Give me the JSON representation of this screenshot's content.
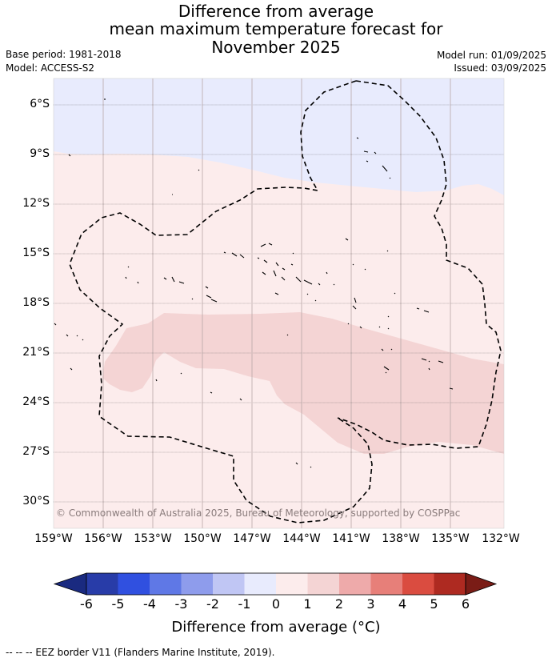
{
  "title": {
    "line1": "Difference from average",
    "line2": "mean maximum temperature forecast for",
    "line3": "November 2025"
  },
  "meta": {
    "base_period": "Base period: 1981-2018",
    "model": "Model: ACCESS-S2",
    "model_run": "Model run: 01/09/2025",
    "issued": "Issued: 03/09/2025"
  },
  "map": {
    "lat_labels": [
      "6°S",
      "9°S",
      "12°S",
      "15°S",
      "18°S",
      "21°S",
      "24°S",
      "27°S",
      "30°S"
    ],
    "lon_labels": [
      "159°W",
      "156°W",
      "153°W",
      "150°W",
      "147°W",
      "144°W",
      "141°W",
      "138°W",
      "135°W",
      "132°W"
    ],
    "copyright": "© Commonwealth of Australia 2025, Bureau of Meteorology, supported by COSPPac",
    "region_values": {
      "north_band": -0.5,
      "background": 0.5,
      "central_band": 1.5
    }
  },
  "colorbar": {
    "ticks": [
      "-6",
      "-5",
      "-4",
      "-3",
      "-2",
      "-1",
      "0",
      "1",
      "2",
      "3",
      "4",
      "5",
      "6"
    ],
    "colors": [
      "#283ca8",
      "#3050e0",
      "#5f78e6",
      "#8e9cec",
      "#c0c6f4",
      "#e8ebfd",
      "#fcecec",
      "#f4d4d4",
      "#eeaaaa",
      "#e77f79",
      "#da4c40",
      "#ae2a21"
    ],
    "low_extend_color": "#1a2a80",
    "high_extend_color": "#7a1c16",
    "title": "Difference from average (°C)"
  },
  "footer": "--  --  -- EEZ border V11 (Flanders Marine Institute, 2019)."
}
